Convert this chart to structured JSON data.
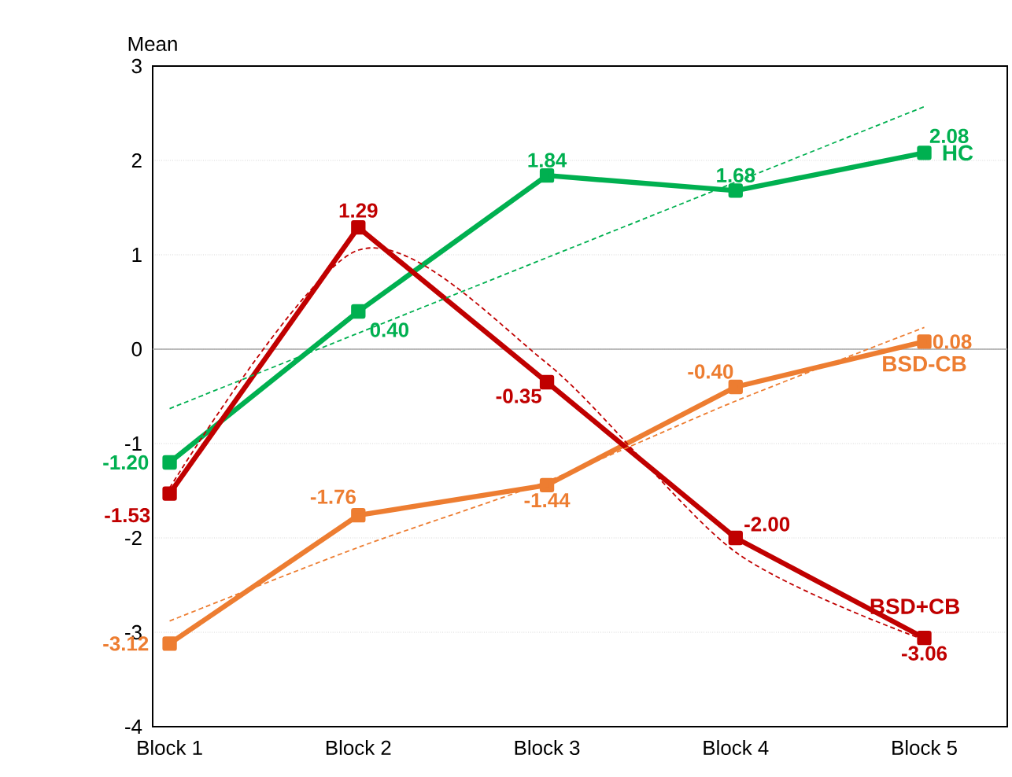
{
  "chart_data": {
    "type": "line",
    "ylabel": "Mean",
    "categories": [
      "Block 1",
      "Block 2",
      "Block 3",
      "Block 4",
      "Block 5"
    ],
    "ylim": [
      -4,
      3
    ],
    "yticks": [
      -4,
      -3,
      -2,
      -1,
      0,
      1,
      2,
      3
    ],
    "grid": "y",
    "marker": "square",
    "line_style": "solid",
    "series": [
      {
        "name": "HC",
        "color": "#00b050",
        "values": [
          -1.2,
          0.4,
          1.84,
          1.68,
          2.08
        ],
        "value_labels": [
          "-1.20",
          "0.40",
          "1.84",
          "1.68",
          "2.08"
        ]
      },
      {
        "name": "BSD-CB",
        "color": "#ed7d31",
        "values": [
          -3.12,
          -1.76,
          -1.44,
          -0.4,
          0.08
        ],
        "value_labels": [
          "-3.12",
          "-1.76",
          "-1.44",
          "-0.40",
          "0.08"
        ]
      },
      {
        "name": "BSD+CB",
        "color": "#c00000",
        "values": [
          -1.53,
          1.29,
          -0.35,
          -2.0,
          -3.06
        ],
        "value_labels": [
          "-1.53",
          "1.29",
          "-0.35",
          "-2.00",
          "-3.06"
        ]
      },
      {
        "type": "line",
        "color": "#00b050",
        "line_style": "dashed",
        "marker": "none",
        "values": [
          -0.63,
          0.17,
          0.97,
          1.77,
          2.57
        ]
      },
      {
        "type": "line",
        "color": "#ed7d31",
        "line_style": "dashed",
        "marker": "none",
        "values": [
          -2.88,
          -2.1,
          -1.4,
          -0.55,
          0.23
        ]
      },
      {
        "type": "line",
        "color": "#c00000",
        "line_style": "dashed",
        "marker": "none",
        "values": [
          -1.47,
          1.05,
          -0.15,
          -2.15,
          -3.08
        ]
      }
    ]
  }
}
